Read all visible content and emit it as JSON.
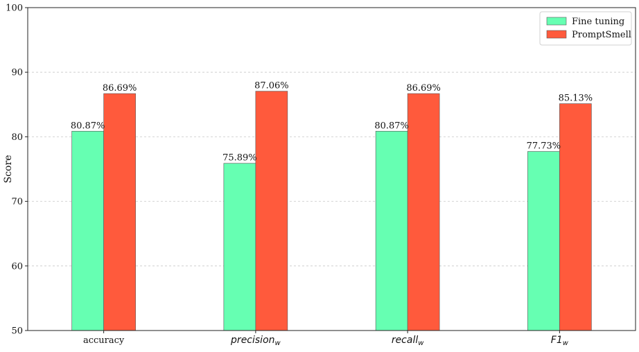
{
  "chart_data": {
    "type": "bar",
    "categories": [
      {
        "base": "accuracy",
        "sub": "",
        "italic": false
      },
      {
        "base": "precision",
        "sub": "w",
        "italic": true
      },
      {
        "base": "recall",
        "sub": "w",
        "italic": true
      },
      {
        "base": "F1",
        "sub": "w",
        "italic": true
      }
    ],
    "series": [
      {
        "name": "Fine tuning",
        "color": "#66ffb2",
        "values": [
          80.87,
          75.89,
          80.87,
          77.73
        ],
        "labels": [
          "80.87%",
          "75.89%",
          "80.87%",
          "77.73%"
        ]
      },
      {
        "name": "PromptSmell",
        "color": "#ff5a3c",
        "values": [
          86.69,
          87.06,
          86.69,
          85.13
        ],
        "labels": [
          "86.69%",
          "87.06%",
          "86.69%",
          "85.13%"
        ]
      }
    ],
    "xlabel": "",
    "ylabel": "Score",
    "ylim": [
      50,
      100
    ],
    "yticks": [
      "50",
      "60",
      "70",
      "80",
      "90",
      "100"
    ],
    "grid": "horizontal dashed",
    "legend_position": "top-right"
  }
}
